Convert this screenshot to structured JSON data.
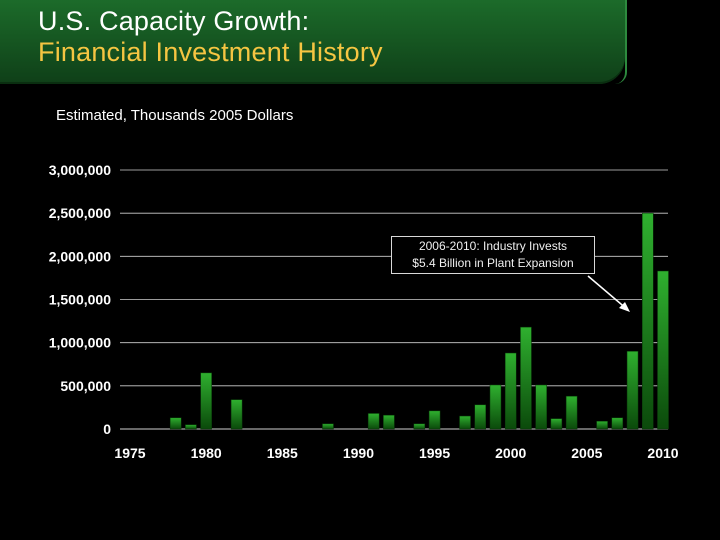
{
  "header": {
    "title_line1": "U.S. Capacity Growth:",
    "title_line2": "Financial Investment History"
  },
  "subtitle": "Estimated, Thousands 2005 Dollars",
  "callout": {
    "line1": "2006-2010: Industry Invests",
    "line2": "$5.4 Billion in Plant Expansion"
  },
  "colors": {
    "bar_top": "#2fb02f",
    "bar_bottom": "#0b4a0b",
    "grid": "#cfcfcf"
  },
  "chart_data": {
    "type": "bar",
    "title": "",
    "xlabel": "",
    "ylabel": "",
    "ylim": [
      0,
      3000000
    ],
    "xlim": [
      1975,
      2010
    ],
    "y_ticks": [
      0,
      500000,
      1000000,
      1500000,
      2000000,
      2500000,
      3000000
    ],
    "y_tick_labels": [
      "0",
      "500,000",
      "1,000,000",
      "1,500,000",
      "2,000,000",
      "2,500,000",
      "3,000,000"
    ],
    "x_ticks": [
      1975,
      1980,
      1985,
      1990,
      1995,
      2000,
      2005,
      2010
    ],
    "x_tick_labels": [
      "1975",
      "1980",
      "1985",
      "1990",
      "1995",
      "2000",
      "2005",
      "2010"
    ],
    "grid": true,
    "years": [
      1978,
      1979,
      1980,
      1982,
      1988,
      1991,
      1992,
      1994,
      1995,
      1997,
      1998,
      1999,
      2000,
      2001,
      2002,
      2003,
      2004,
      2006,
      2007,
      2008,
      2009,
      2010
    ],
    "values": [
      130000,
      50000,
      650000,
      340000,
      60000,
      180000,
      160000,
      60000,
      210000,
      150000,
      280000,
      510000,
      880000,
      1180000,
      510000,
      120000,
      380000,
      90000,
      130000,
      900000,
      2500000,
      1830000
    ]
  }
}
